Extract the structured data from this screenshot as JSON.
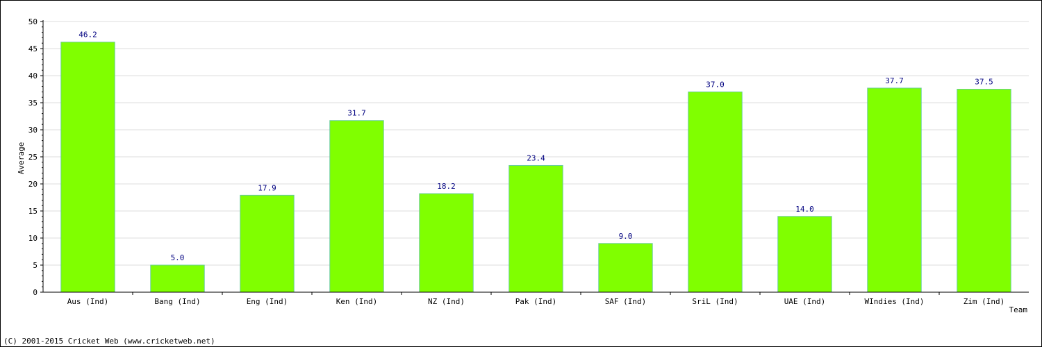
{
  "chart_data": {
    "type": "bar",
    "categories": [
      "Aus (Ind)",
      "Bang (Ind)",
      "Eng (Ind)",
      "Ken (Ind)",
      "NZ (Ind)",
      "Pak (Ind)",
      "SAF (Ind)",
      "SriL (Ind)",
      "UAE (Ind)",
      "WIndies (Ind)",
      "Zim (Ind)"
    ],
    "values": [
      46.2,
      5.0,
      17.9,
      31.7,
      18.2,
      23.4,
      9.0,
      37.0,
      14.0,
      37.7,
      37.5
    ],
    "value_labels": [
      "46.2",
      "5.0",
      "17.9",
      "31.7",
      "18.2",
      "23.4",
      "9.0",
      "37.0",
      "14.0",
      "37.7",
      "37.5"
    ],
    "xlabel": "Team",
    "ylabel": "Average",
    "ylim": [
      0,
      50
    ],
    "yticks": [
      0,
      5,
      10,
      15,
      20,
      25,
      30,
      35,
      40,
      45,
      50
    ],
    "grid": true,
    "bar_color": "#80ff00",
    "bar_edge_color": "#66cc99",
    "label_color": "#000080"
  },
  "footer": {
    "credit": "(C) 2001-2015 Cricket Web (www.cricketweb.net)"
  }
}
